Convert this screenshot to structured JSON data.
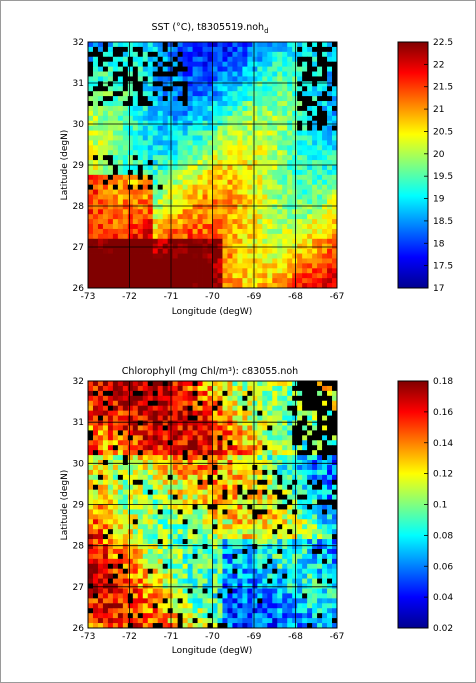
{
  "chart_data": [
    {
      "type": "heatmap",
      "title": "SST (°C), t8305519.noh",
      "title_subscript": "d",
      "xlabel": "Longitude (degW)",
      "ylabel": "Latitude (degN)",
      "xlim": [
        -73,
        -67
      ],
      "ylim": [
        26,
        32
      ],
      "xticks": [
        "-73",
        "-72",
        "-71",
        "-70",
        "-69",
        "-68",
        "-67"
      ],
      "yticks": [
        "26",
        "27",
        "28",
        "29",
        "30",
        "31",
        "32"
      ],
      "grid": true,
      "colorbar": {
        "min": 17,
        "max": 22.5,
        "ticks": [
          "17",
          "17.5",
          "18",
          "18.5",
          "19",
          "19.5",
          "20",
          "20.5",
          "21",
          "21.5",
          "22",
          "22.5"
        ],
        "colormap": "jet"
      },
      "field_description": "SST ~17-22.5 over lon -73 to -67, lat 26 to 32"
    },
    {
      "type": "heatmap",
      "title": "Chlorophyll (mg Chl/m³): c83055.noh",
      "xlabel": "Longitude (degW)",
      "ylabel": "Latitude (degN)",
      "xlim": [
        -73,
        -67
      ],
      "ylim": [
        26,
        32
      ],
      "xticks": [
        "-73",
        "-72",
        "-71",
        "-70",
        "-69",
        "-68",
        "-67"
      ],
      "yticks": [
        "26",
        "27",
        "28",
        "29",
        "30",
        "31",
        "32"
      ],
      "grid": true,
      "colorbar": {
        "min": 0.02,
        "max": 0.18,
        "ticks": [
          "0.02",
          "0.04",
          "0.06",
          "0.08",
          "0.1",
          "0.12",
          "0.14",
          "0.16",
          "0.18"
        ],
        "colormap": "jet"
      },
      "field_description": "Chlorophyll ~0.02-0.18 over lon -73 to -67, lat 26 to 32"
    }
  ]
}
